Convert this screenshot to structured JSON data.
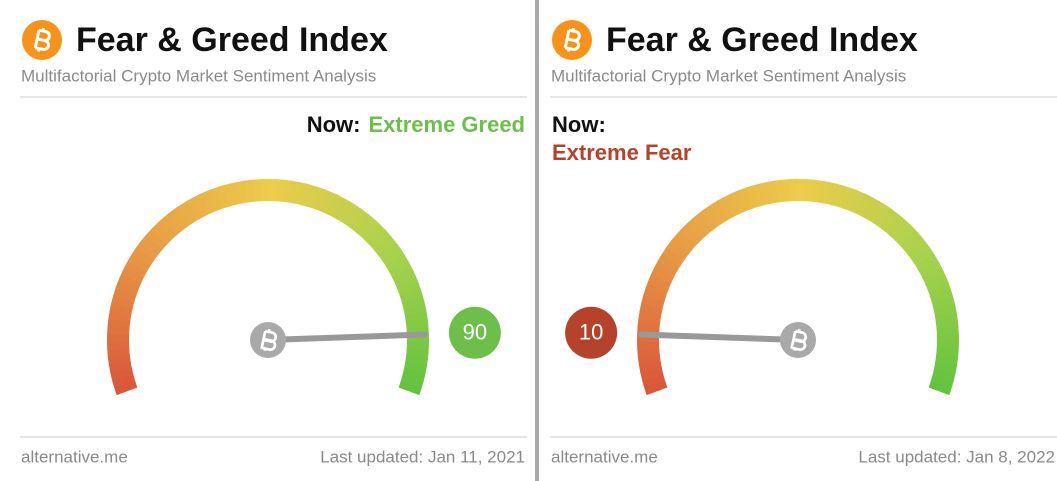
{
  "chart_data": [
    {
      "type": "gauge",
      "title": "Fear & Greed Index",
      "subtitle": "Multifactorial Crypto Market Sentiment Analysis",
      "now_label": "Now:",
      "classification": "Extreme Greed",
      "value": 90,
      "color": "#6cc04a",
      "ylim": [
        0,
        100
      ],
      "source": "alternative.me",
      "updated": "Last updated: Jan 11, 2021"
    },
    {
      "type": "gauge",
      "title": "Fear & Greed Index",
      "subtitle": "Multifactorial Crypto Market Sentiment Analysis",
      "now_label": "Now:",
      "classification": "Extreme Fear",
      "value": 10,
      "color": "#b5432c",
      "ylim": [
        0,
        100
      ],
      "source": "alternative.me",
      "updated": "Last updated: Jan 8, 2022"
    }
  ]
}
